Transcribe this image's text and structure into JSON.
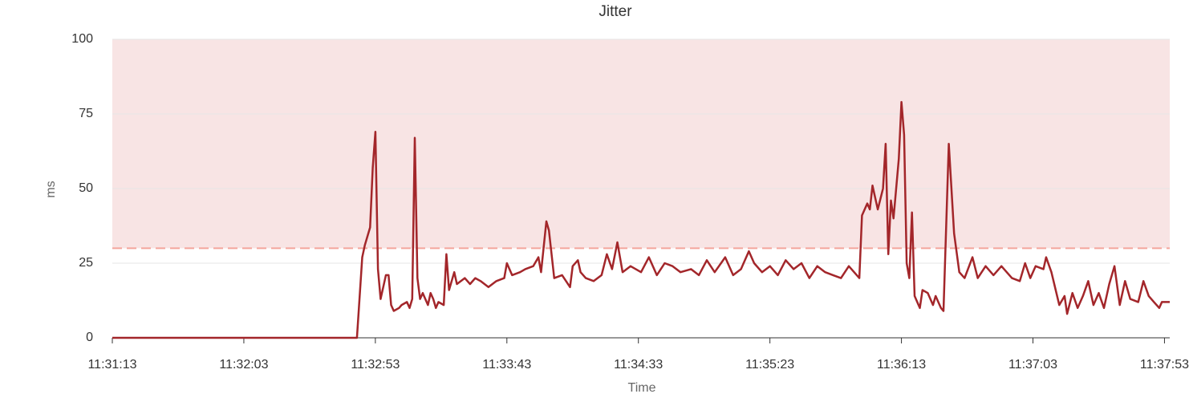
{
  "chart_data": {
    "type": "line",
    "title": "Jitter",
    "x_label": "Time",
    "y_label": "ms",
    "x": [
      "11:31:13",
      "11:32:46",
      "11:32:48",
      "11:32:49",
      "11:32:51",
      "11:32:52",
      "11:32:53",
      "11:32:54",
      "11:32:55",
      "11:32:57",
      "11:32:58",
      "11:32:59",
      "11:33:00",
      "11:33:02",
      "11:33:03",
      "11:33:05",
      "11:33:06",
      "11:33:07",
      "11:33:08",
      "11:33:09",
      "11:33:10",
      "11:33:11",
      "11:33:13",
      "11:33:14",
      "11:33:15",
      "11:33:16",
      "11:33:17",
      "11:33:19",
      "11:33:20",
      "11:33:21",
      "11:33:23",
      "11:33:24",
      "11:33:27",
      "11:33:29",
      "11:33:31",
      "11:33:33",
      "11:33:36",
      "11:33:39",
      "11:33:42",
      "11:33:43",
      "11:33:45",
      "11:33:48",
      "11:33:50",
      "11:33:53",
      "11:33:55",
      "11:33:56",
      "11:33:58",
      "11:33:59",
      "11:34:01",
      "11:34:04",
      "11:34:07",
      "11:34:08",
      "11:34:10",
      "11:34:11",
      "11:34:13",
      "11:34:16",
      "11:34:19",
      "11:34:21",
      "11:34:23",
      "11:34:25",
      "11:34:27",
      "11:34:30",
      "11:34:34",
      "11:34:37",
      "11:34:40",
      "11:34:43",
      "11:34:46",
      "11:34:49",
      "11:34:53",
      "11:34:56",
      "11:34:59",
      "11:35:02",
      "11:35:06",
      "11:35:09",
      "11:35:12",
      "11:35:15",
      "11:35:17",
      "11:35:20",
      "11:35:23",
      "11:35:26",
      "11:35:29",
      "11:35:32",
      "11:35:35",
      "11:35:38",
      "11:35:41",
      "11:35:44",
      "11:35:47",
      "11:35:50",
      "11:35:53",
      "11:35:57",
      "11:35:58",
      "11:36:00",
      "11:36:01",
      "11:36:02",
      "11:36:04",
      "11:36:06",
      "11:36:07",
      "11:36:08",
      "11:36:09",
      "11:36:10",
      "11:36:12",
      "11:36:13",
      "11:36:14",
      "11:36:15",
      "11:36:16",
      "11:36:17",
      "11:36:18",
      "11:36:20",
      "11:36:21",
      "11:36:23",
      "11:36:25",
      "11:36:26",
      "11:36:28",
      "11:36:29",
      "11:36:31",
      "11:36:33",
      "11:36:35",
      "11:36:37",
      "11:36:40",
      "11:36:42",
      "11:36:45",
      "11:36:48",
      "11:36:51",
      "11:36:55",
      "11:36:58",
      "11:37:00",
      "11:37:02",
      "11:37:04",
      "11:37:07",
      "11:37:08",
      "11:37:10",
      "11:37:13",
      "11:37:15",
      "11:37:16",
      "11:37:18",
      "11:37:20",
      "11:37:22",
      "11:37:24",
      "11:37:26",
      "11:37:28",
      "11:37:30",
      "11:37:32",
      "11:37:34",
      "11:37:36",
      "11:37:38",
      "11:37:40",
      "11:37:43",
      "11:37:45",
      "11:37:47",
      "11:37:49",
      "11:37:51",
      "11:37:52",
      "11:37:55"
    ],
    "series": [
      {
        "color": "#a3262a",
        "values": [
          0,
          0,
          27,
          31,
          37,
          57,
          69,
          23,
          13,
          21,
          21,
          11,
          9,
          10,
          11,
          12,
          10,
          13,
          67,
          20,
          13,
          15,
          11,
          15,
          13,
          10,
          12,
          11,
          28,
          16,
          22,
          18,
          20,
          18,
          20,
          19,
          17,
          19,
          20,
          25,
          21,
          22,
          23,
          24,
          27,
          22,
          39,
          36,
          20,
          21,
          17,
          24,
          26,
          22,
          20,
          19,
          21,
          28,
          23,
          32,
          22,
          24,
          22,
          27,
          21,
          25,
          24,
          22,
          23,
          21,
          26,
          22,
          27,
          21,
          23,
          29,
          25,
          22,
          24,
          21,
          26,
          23,
          25,
          20,
          24,
          22,
          21,
          20,
          24,
          20,
          41,
          45,
          43,
          51,
          43,
          50,
          65,
          28,
          46,
          40,
          60,
          79,
          68,
          25,
          20,
          42,
          14,
          10,
          16,
          15,
          11,
          14,
          10,
          9,
          65,
          35,
          22,
          20,
          27,
          20,
          24,
          21,
          24,
          20,
          19,
          25,
          20,
          24,
          23,
          27,
          22,
          11,
          14,
          8,
          15,
          10,
          14,
          19,
          11,
          15,
          10,
          18,
          24,
          11,
          19,
          13,
          12,
          19,
          14,
          12,
          10,
          12,
          12
        ]
      }
    ],
    "xlim": [
      "11:31:13",
      "11:37:55"
    ],
    "xticks": [
      "11:31:13",
      "11:32:03",
      "11:32:53",
      "11:33:43",
      "11:34:33",
      "11:35:23",
      "11:36:13",
      "11:37:03",
      "11:37:53"
    ],
    "ylim": [
      0,
      100
    ],
    "yticks": [
      0,
      25,
      50,
      75,
      100
    ],
    "grid": true,
    "threshold": 30,
    "threshold_color": "#f4a59c",
    "threshold_fill": "#f8e4e4"
  }
}
